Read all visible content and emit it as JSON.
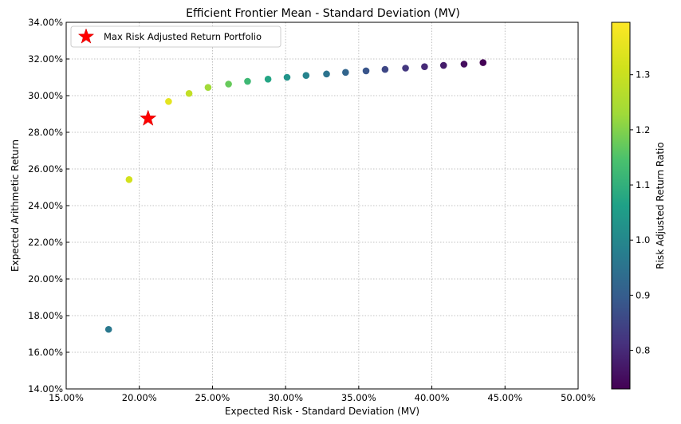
{
  "chart_data": {
    "type": "scatter",
    "title": "Efficient Frontier Mean - Standard Deviation (MV)",
    "xlabel": "Expected Risk - Standard Deviation (MV)",
    "ylabel": "Expected Arithmetic Return",
    "xlim": [
      0.15,
      0.5
    ],
    "ylim": [
      0.14,
      0.34
    ],
    "x_ticks": [
      0.15,
      0.2,
      0.25,
      0.3,
      0.35,
      0.4,
      0.45,
      0.5
    ],
    "x_tick_labels": [
      "15.00%",
      "20.00%",
      "25.00%",
      "30.00%",
      "35.00%",
      "40.00%",
      "45.00%",
      "50.00%"
    ],
    "y_ticks": [
      0.14,
      0.16,
      0.18,
      0.2,
      0.22,
      0.24,
      0.26,
      0.28,
      0.3,
      0.32,
      0.34
    ],
    "y_tick_labels": [
      "14.00%",
      "16.00%",
      "18.00%",
      "20.00%",
      "22.00%",
      "24.00%",
      "26.00%",
      "28.00%",
      "30.00%",
      "32.00%",
      "34.00%"
    ],
    "grid": true,
    "legend_position": "top-left",
    "points": [
      {
        "x": 0.179,
        "y": 0.1725,
        "ratio": 0.963
      },
      {
        "x": 0.193,
        "y": 0.2542,
        "ratio": 1.317
      },
      {
        "x": 0.22,
        "y": 0.2968,
        "ratio": 1.349
      },
      {
        "x": 0.234,
        "y": 0.3012,
        "ratio": 1.287
      },
      {
        "x": 0.247,
        "y": 0.3045,
        "ratio": 1.233
      },
      {
        "x": 0.261,
        "y": 0.3063,
        "ratio": 1.174
      },
      {
        "x": 0.274,
        "y": 0.3078,
        "ratio": 1.123
      },
      {
        "x": 0.288,
        "y": 0.309,
        "ratio": 1.073
      },
      {
        "x": 0.301,
        "y": 0.31,
        "ratio": 1.03
      },
      {
        "x": 0.314,
        "y": 0.311,
        "ratio": 0.99
      },
      {
        "x": 0.328,
        "y": 0.3118,
        "ratio": 0.951
      },
      {
        "x": 0.341,
        "y": 0.3127,
        "ratio": 0.917
      },
      {
        "x": 0.355,
        "y": 0.3135,
        "ratio": 0.883
      },
      {
        "x": 0.368,
        "y": 0.3143,
        "ratio": 0.854
      },
      {
        "x": 0.382,
        "y": 0.315,
        "ratio": 0.825
      },
      {
        "x": 0.395,
        "y": 0.3158,
        "ratio": 0.8
      },
      {
        "x": 0.408,
        "y": 0.3165,
        "ratio": 0.776
      },
      {
        "x": 0.422,
        "y": 0.3172,
        "ratio": 0.752
      },
      {
        "x": 0.435,
        "y": 0.318,
        "ratio": 0.731
      }
    ],
    "highlight": {
      "label": "Max Risk Adjusted Return Portfolio",
      "x": 0.206,
      "y": 0.2875,
      "color": "#ff0000",
      "marker": "star"
    },
    "colorbar": {
      "label": "Risk Adjusted Return Ratio",
      "colormap": "viridis",
      "range": [
        0.73,
        1.395
      ],
      "ticks": [
        0.8,
        0.9,
        1.0,
        1.1,
        1.2,
        1.3
      ],
      "tick_labels": [
        "0.8",
        "0.9",
        "1.0",
        "1.1",
        "1.2",
        "1.3"
      ]
    }
  }
}
